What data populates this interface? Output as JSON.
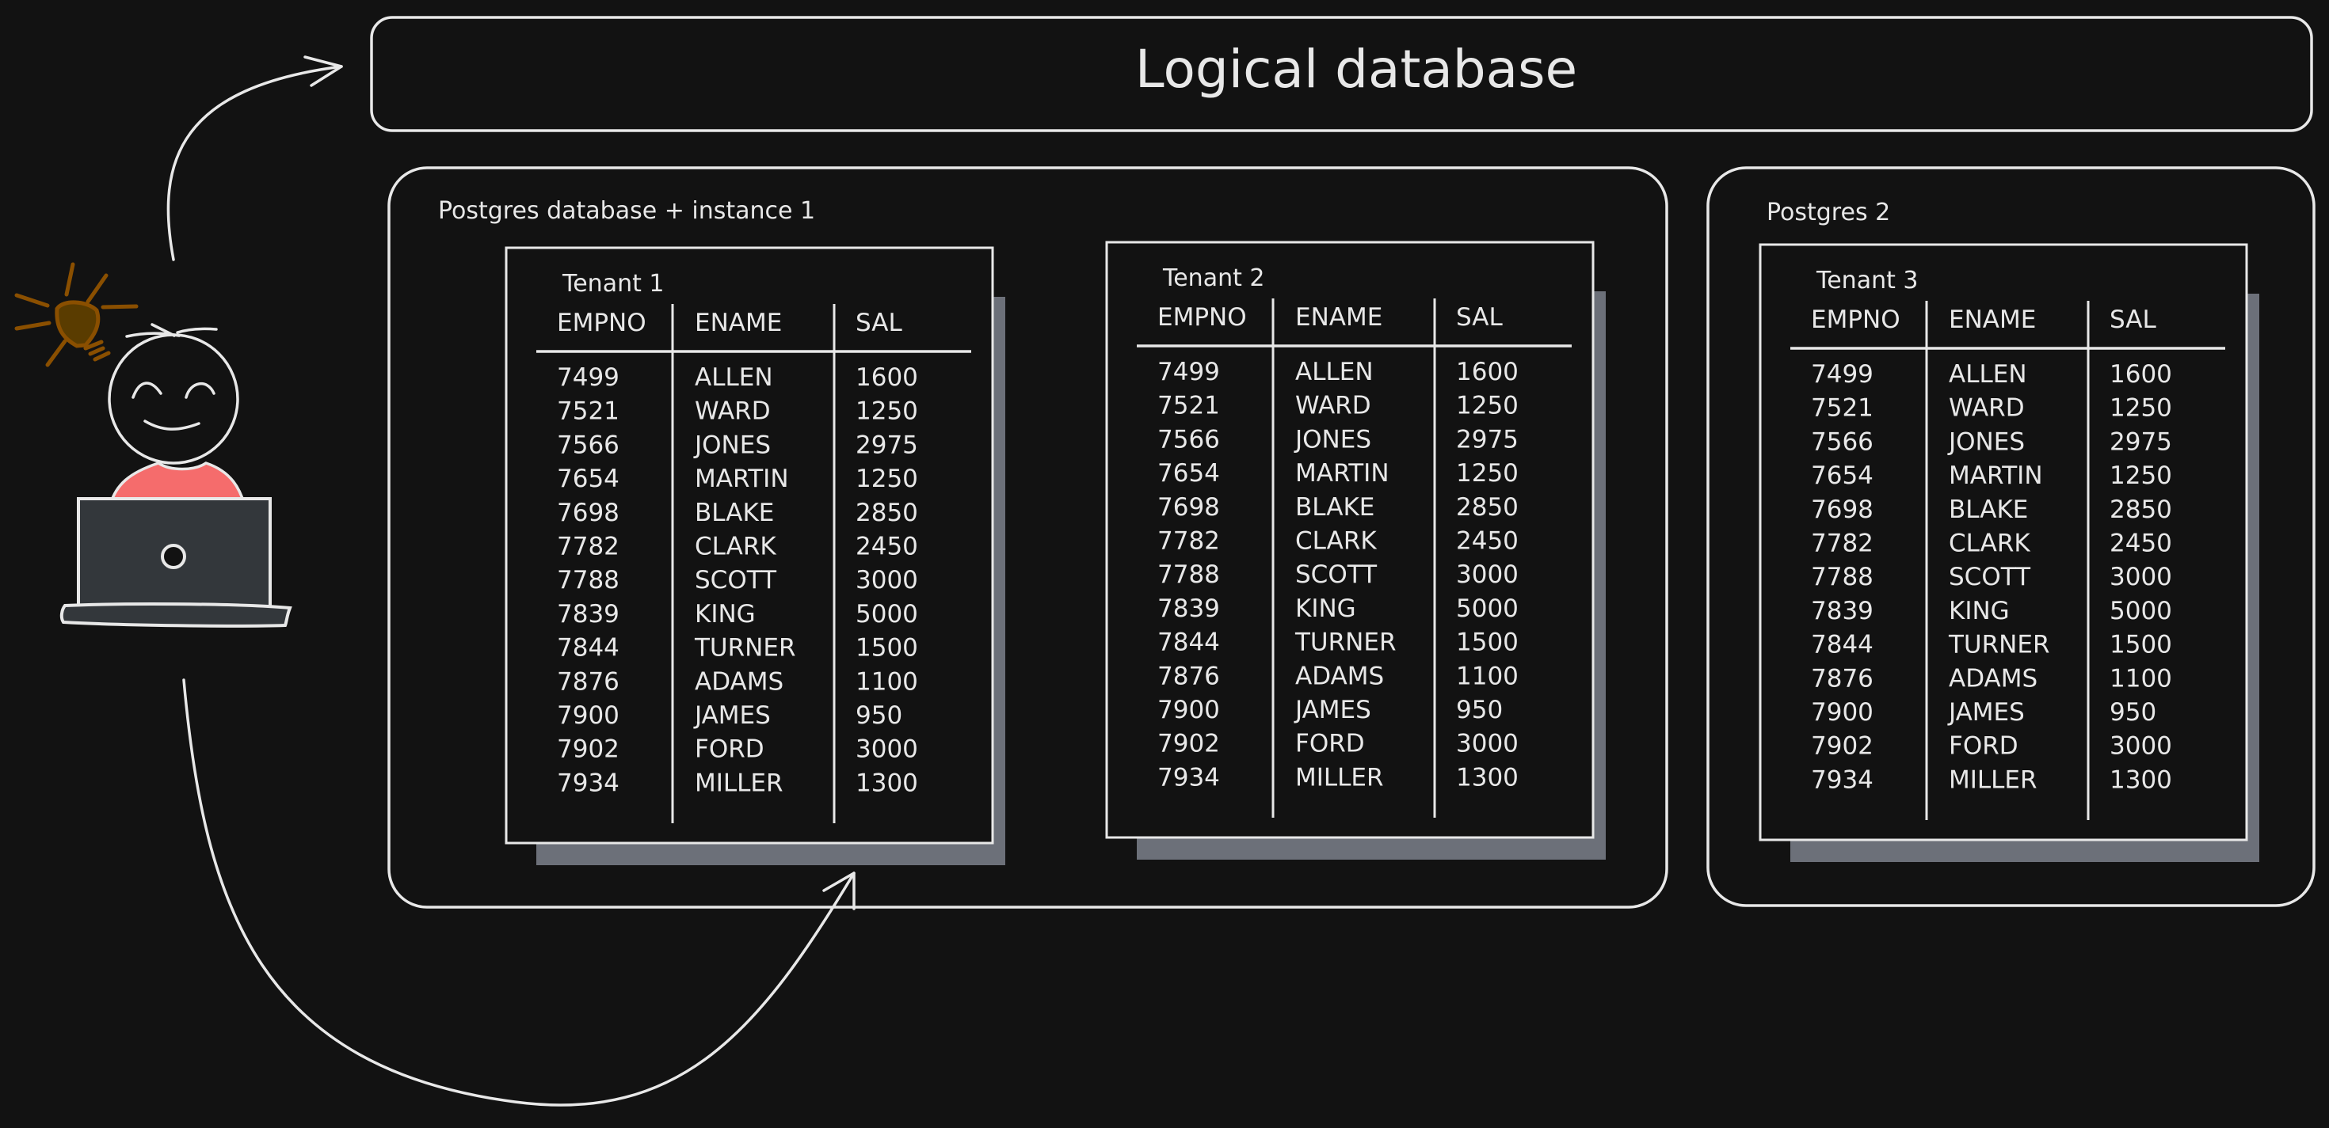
{
  "title": "Logical database",
  "colors": {
    "background": "#121212",
    "stroke": "#e8e8e8",
    "shadow": "#6c7079",
    "shirt": "#f56c6c",
    "laptop": "#33373b",
    "bulb": "#8a4f00",
    "bulb_fill": "#5a3c00"
  },
  "icons": [
    "person-icon",
    "lightbulb-icon",
    "laptop-icon",
    "arrow-icon"
  ],
  "instances": [
    {
      "label": "Postgres database + instance 1"
    },
    {
      "label": "Postgres 2"
    }
  ],
  "tables": [
    {
      "tenant": "Tenant 1",
      "columns": [
        "EMPNO",
        "ENAME",
        "SAL"
      ],
      "rows": [
        [
          "7499",
          "ALLEN",
          "1600"
        ],
        [
          "7521",
          "WARD",
          "1250"
        ],
        [
          "7566",
          "JONES",
          "2975"
        ],
        [
          "7654",
          "MARTIN",
          "1250"
        ],
        [
          "7698",
          "BLAKE",
          "2850"
        ],
        [
          "7782",
          "CLARK",
          "2450"
        ],
        [
          "7788",
          "SCOTT",
          "3000"
        ],
        [
          "7839",
          "KING",
          "5000"
        ],
        [
          "7844",
          "TURNER",
          "1500"
        ],
        [
          "7876",
          "ADAMS",
          "1100"
        ],
        [
          "7900",
          "JAMES",
          "950"
        ],
        [
          "7902",
          "FORD",
          "3000"
        ],
        [
          "7934",
          "MILLER",
          "1300"
        ]
      ]
    },
    {
      "tenant": "Tenant 2",
      "columns": [
        "EMPNO",
        "ENAME",
        "SAL"
      ],
      "rows": [
        [
          "7499",
          "ALLEN",
          "1600"
        ],
        [
          "7521",
          "WARD",
          "1250"
        ],
        [
          "7566",
          "JONES",
          "2975"
        ],
        [
          "7654",
          "MARTIN",
          "1250"
        ],
        [
          "7698",
          "BLAKE",
          "2850"
        ],
        [
          "7782",
          "CLARK",
          "2450"
        ],
        [
          "7788",
          "SCOTT",
          "3000"
        ],
        [
          "7839",
          "KING",
          "5000"
        ],
        [
          "7844",
          "TURNER",
          "1500"
        ],
        [
          "7876",
          "ADAMS",
          "1100"
        ],
        [
          "7900",
          "JAMES",
          "950"
        ],
        [
          "7902",
          "FORD",
          "3000"
        ],
        [
          "7934",
          "MILLER",
          "1300"
        ]
      ]
    },
    {
      "tenant": "Tenant 3",
      "columns": [
        "EMPNO",
        "ENAME",
        "SAL"
      ],
      "rows": [
        [
          "7499",
          "ALLEN",
          "1600"
        ],
        [
          "7521",
          "WARD",
          "1250"
        ],
        [
          "7566",
          "JONES",
          "2975"
        ],
        [
          "7654",
          "MARTIN",
          "1250"
        ],
        [
          "7698",
          "BLAKE",
          "2850"
        ],
        [
          "7782",
          "CLARK",
          "2450"
        ],
        [
          "7788",
          "SCOTT",
          "3000"
        ],
        [
          "7839",
          "KING",
          "5000"
        ],
        [
          "7844",
          "TURNER",
          "1500"
        ],
        [
          "7876",
          "ADAMS",
          "1100"
        ],
        [
          "7900",
          "JAMES",
          "950"
        ],
        [
          "7902",
          "FORD",
          "3000"
        ],
        [
          "7934",
          "MILLER",
          "1300"
        ]
      ]
    }
  ]
}
